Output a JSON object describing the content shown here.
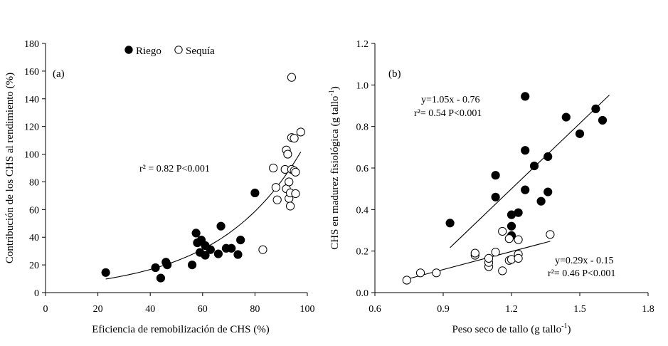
{
  "chart_data": [
    {
      "type": "scatter",
      "panel_label": "(a)",
      "xlabel": "Eficiencia de remobilización de CHS (%)",
      "ylabel": "Contribución de los CHS al rendimiento (%)",
      "xlim": [
        0,
        100
      ],
      "ylim": [
        0,
        180
      ],
      "xticks": [
        0,
        20,
        40,
        60,
        80,
        100
      ],
      "yticks": [
        0,
        20,
        40,
        60,
        80,
        100,
        120,
        140,
        160,
        180
      ],
      "legend": [
        {
          "label": "Riego",
          "marker": "filled-circle"
        },
        {
          "label": "Sequía",
          "marker": "open-circle"
        }
      ],
      "annotations": [
        {
          "text": "r² = 0.82 P<0.001"
        }
      ],
      "series": [
        {
          "name": "Riego",
          "marker": "filled",
          "points": [
            [
              23,
              14.5
            ],
            [
              42,
              18
            ],
            [
              44,
              10.5
            ],
            [
              46,
              22
            ],
            [
              46.5,
              20
            ],
            [
              56,
              20
            ],
            [
              57.5,
              43
            ],
            [
              58,
              36
            ],
            [
              59,
              29
            ],
            [
              59.5,
              38
            ],
            [
              61,
              34
            ],
            [
              61,
              27
            ],
            [
              63,
              31
            ],
            [
              66,
              28
            ],
            [
              67,
              48
            ],
            [
              69,
              32
            ],
            [
              71,
              32
            ],
            [
              73.5,
              27.5
            ],
            [
              74.5,
              38
            ],
            [
              80,
              72
            ]
          ]
        },
        {
          "name": "Sequía",
          "marker": "open",
          "points": [
            [
              83,
              31
            ],
            [
              87,
              90
            ],
            [
              88,
              76
            ],
            [
              88.5,
              67
            ],
            [
              91.5,
              89
            ],
            [
              92,
              75
            ],
            [
              92,
              103
            ],
            [
              92.5,
              100
            ],
            [
              93,
              68
            ],
            [
              93,
              80
            ],
            [
              93.5,
              72
            ],
            [
              93.5,
              62.5
            ],
            [
              94,
              89
            ],
            [
              94,
              112
            ],
            [
              94,
              155.5
            ],
            [
              95,
              88
            ],
            [
              95,
              111.5
            ],
            [
              95.5,
              71.5
            ],
            [
              95.5,
              87
            ],
            [
              97.5,
              116
            ]
          ]
        }
      ],
      "fit_curves": [
        {
          "kind": "exponential",
          "a": 4.76,
          "b": 0.0314,
          "x_range": [
            23,
            97.5
          ]
        }
      ]
    },
    {
      "type": "scatter",
      "panel_label": "(b)",
      "xlabel": "Peso seco de tallo (g tallo-1)",
      "xlabel_main": "Peso seco de tallo (g tallo",
      "xlabel_sup": "-1",
      "xlabel_close": ")",
      "ylabel": "CHS en madurez fisiológica (g tallo-1)",
      "ylabel_main": "CHS en madurez fisiológica (g tallo",
      "ylabel_sup": "-1",
      "ylabel_close": ")",
      "xlim": [
        0.6,
        1.8
      ],
      "ylim": [
        0,
        1.2
      ],
      "xticks": [
        "0.6",
        "0.9",
        "1.2",
        "1.5",
        "1.8"
      ],
      "yticks": [
        "0.0",
        "0.2",
        "0.4",
        "0.6",
        "0.8",
        "1.0",
        "1.2"
      ],
      "annotations": [
        {
          "text": "y=1.05x - 0.76"
        },
        {
          "text": "r²= 0.54 P<0.001"
        },
        {
          "text": "y=0.29x - 0.15"
        },
        {
          "text": "r²= 0.46 P<0.001"
        }
      ],
      "series": [
        {
          "name": "Riego",
          "marker": "filled",
          "points": [
            [
              0.93,
              0.335
            ],
            [
              1.13,
              0.565
            ],
            [
              1.13,
              0.46
            ],
            [
              1.2,
              0.375
            ],
            [
              1.2,
              0.32
            ],
            [
              1.2,
              0.275
            ],
            [
              1.23,
              0.385
            ],
            [
              1.26,
              0.945
            ],
            [
              1.26,
              0.685
            ],
            [
              1.26,
              0.495
            ],
            [
              1.3,
              0.61
            ],
            [
              1.33,
              0.44
            ],
            [
              1.36,
              0.655
            ],
            [
              1.36,
              0.485
            ],
            [
              1.44,
              0.845
            ],
            [
              1.5,
              0.765
            ],
            [
              1.57,
              0.885
            ],
            [
              1.6,
              0.83
            ]
          ]
        },
        {
          "name": "Sequía",
          "marker": "open",
          "points": [
            [
              0.74,
              0.06
            ],
            [
              0.8,
              0.095
            ],
            [
              0.87,
              0.095
            ],
            [
              1.04,
              0.18
            ],
            [
              1.04,
              0.19
            ],
            [
              1.1,
              0.125
            ],
            [
              1.1,
              0.145
            ],
            [
              1.1,
              0.165
            ],
            [
              1.13,
              0.195
            ],
            [
              1.16,
              0.295
            ],
            [
              1.16,
              0.105
            ],
            [
              1.19,
              0.26
            ],
            [
              1.19,
              0.155
            ],
            [
              1.2,
              0.16
            ],
            [
              1.23,
              0.255
            ],
            [
              1.23,
              0.185
            ],
            [
              1.23,
              0.165
            ],
            [
              1.37,
              0.28
            ]
          ]
        }
      ],
      "fit_lines": [
        {
          "slope": 1.05,
          "intercept": -0.76,
          "x_range": [
            0.93,
            1.63
          ]
        },
        {
          "slope": 0.29,
          "intercept": -0.15,
          "x_range": [
            0.73,
            1.37
          ]
        }
      ]
    }
  ]
}
